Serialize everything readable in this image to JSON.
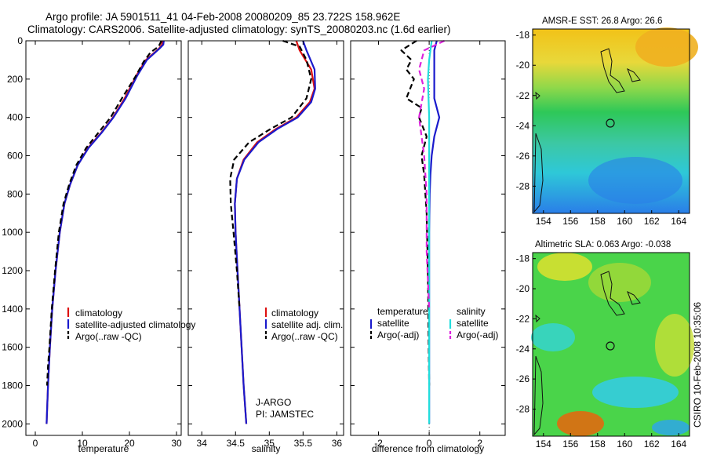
{
  "header": {
    "title_line1": "Argo profile: JA 5901511_41 04-Feb-2008 20080209_85 23.722S 158.962E",
    "title_line2": "Climatology: CARS2006. Satellite-adjusted climatology: synTS_20080203.nc (1.6d earlier)"
  },
  "side_text": "CSIRO 10-Feb-2008 10:35:06",
  "colors": {
    "climatology": "#dd1111",
    "satellite": "#1a1acc",
    "argo": "#000000",
    "satellite_salinity": "#22dddd",
    "argo_salinity": "#dd22dd"
  },
  "chart_data": [
    {
      "type": "line",
      "panel": "temperature",
      "xlabel": "temperature",
      "ylabel": "",
      "xlim": [
        -2,
        31
      ],
      "ylim": [
        2060,
        0
      ],
      "y_inverted": true,
      "x_ticks": [
        0,
        10,
        20,
        30
      ],
      "y_ticks": [
        0,
        200,
        400,
        600,
        800,
        1000,
        1200,
        1400,
        1600,
        1800,
        2000
      ],
      "legend": [
        "climatology",
        "satellite-adjusted climatology",
        "Argo(..raw -QC)"
      ],
      "series": [
        {
          "name": "climatology",
          "color": "red",
          "style": "solid",
          "x": [
            27.0,
            26.9,
            26.3,
            23.5,
            21.5,
            19.0,
            16.5,
            14.0,
            11.2,
            9.0,
            7.4,
            6.2,
            5.2,
            4.3,
            3.6,
            3.1,
            2.7,
            2.4
          ],
          "y": [
            0,
            20,
            40,
            100,
            180,
            300,
            400,
            480,
            560,
            650,
            750,
            850,
            1000,
            1200,
            1400,
            1600,
            1800,
            2000
          ]
        },
        {
          "name": "satellite-adjusted climatology",
          "color": "blue",
          "style": "solid",
          "x": [
            27.3,
            27.2,
            26.4,
            23.7,
            21.7,
            19.2,
            16.6,
            14.1,
            11.3,
            9.0,
            7.4,
            6.2,
            5.2,
            4.3,
            3.6,
            3.1,
            2.7,
            2.4
          ],
          "y": [
            0,
            20,
            40,
            100,
            180,
            300,
            400,
            480,
            560,
            650,
            750,
            850,
            1000,
            1200,
            1400,
            1600,
            1800,
            2000
          ]
        },
        {
          "name": "Argo(..raw -QC)",
          "color": "black",
          "style": "dashed",
          "x": [
            26.8,
            26.2,
            24.5,
            23.0,
            21.2,
            18.4,
            16.0,
            13.4,
            10.8,
            8.7,
            7.2,
            6.0,
            5.0,
            4.2,
            3.5,
            3.0,
            2.7,
            2.5
          ],
          "y": [
            0,
            30,
            60,
            110,
            190,
            300,
            400,
            480,
            560,
            650,
            750,
            850,
            1000,
            1200,
            1400,
            1600,
            1700,
            1800
          ]
        }
      ]
    },
    {
      "type": "line",
      "panel": "salinity",
      "xlabel": "salinity",
      "ylabel": "",
      "xlim": [
        33.8,
        36.1
      ],
      "ylim": [
        2060,
        0
      ],
      "y_inverted": true,
      "x_ticks": [
        34,
        34.5,
        35,
        35.5,
        36
      ],
      "legend": [
        "climatology",
        "satellite adj. clim.",
        "Argo(..raw -QC)"
      ],
      "annotation": [
        "J-ARGO",
        "PI: JAMSTEC"
      ],
      "series": [
        {
          "name": "climatology",
          "color": "red",
          "style": "solid",
          "x": [
            35.4,
            35.45,
            35.62,
            35.67,
            35.6,
            35.4,
            35.1,
            34.82,
            34.62,
            34.52,
            34.49,
            34.5,
            34.53,
            34.56,
            34.59,
            34.62,
            34.64,
            34.66
          ],
          "y": [
            0,
            50,
            150,
            250,
            320,
            400,
            460,
            530,
            620,
            720,
            850,
            1000,
            1200,
            1400,
            1600,
            1800,
            1900,
            2000
          ]
        },
        {
          "name": "satellite adj. clim.",
          "color": "blue",
          "style": "solid",
          "x": [
            35.5,
            35.55,
            35.67,
            35.68,
            35.62,
            35.42,
            35.12,
            34.84,
            34.63,
            34.52,
            34.49,
            34.5,
            34.53,
            34.56,
            34.59,
            34.62,
            34.64,
            34.66
          ],
          "y": [
            0,
            50,
            150,
            250,
            320,
            400,
            460,
            530,
            620,
            720,
            850,
            1000,
            1200,
            1400,
            1600,
            1800,
            1900,
            2000
          ]
        },
        {
          "name": "Argo(..raw -QC)",
          "color": "black",
          "style": "dashed",
          "x": [
            35.2,
            35.45,
            35.55,
            35.62,
            35.55,
            35.33,
            35.02,
            34.7,
            34.48,
            34.42,
            34.43,
            34.47,
            34.52,
            34.56
          ],
          "y": [
            0,
            30,
            100,
            200,
            300,
            400,
            460,
            530,
            620,
            720,
            850,
            1000,
            1200,
            1400
          ]
        }
      ]
    },
    {
      "type": "line",
      "panel": "difference",
      "xlabel": "difference from climatology",
      "ylabel": "",
      "xlim": [
        -3.1,
        3.0
      ],
      "ylim": [
        2060,
        0
      ],
      "y_inverted": true,
      "x_ticks": [
        -2,
        0,
        2
      ],
      "legend_headers": [
        "temperature",
        "salinity"
      ],
      "legend": [
        "satellite",
        "Argo(-adj)",
        "satellite",
        "Argo(-adj)"
      ],
      "series": [
        {
          "name": "satellite",
          "group": "temperature",
          "color": "blue",
          "style": "solid",
          "x": [
            0.3,
            0.2,
            0.2,
            0.2,
            0.2,
            0.3,
            0.4,
            0.2,
            0.1,
            0.05,
            0.02,
            0.0,
            0.0,
            0.0
          ],
          "y": [
            0,
            50,
            100,
            200,
            300,
            350,
            400,
            500,
            600,
            700,
            800,
            1000,
            1500,
            2000
          ]
        },
        {
          "name": "Argo(-adj)",
          "group": "temperature",
          "color": "black",
          "style": "dashed",
          "x": [
            -0.5,
            -1.1,
            -0.7,
            -0.9,
            -0.6,
            -0.9,
            -0.3,
            -0.4,
            -0.1,
            -0.3,
            -0.2,
            -0.1,
            -0.05,
            0.0
          ],
          "y": [
            0,
            50,
            100,
            150,
            200,
            300,
            350,
            400,
            500,
            600,
            700,
            900,
            1200,
            1800
          ]
        },
        {
          "name": "satellite",
          "group": "salinity",
          "color": "cyan",
          "style": "solid",
          "x": [
            0.1,
            0.05,
            0.0,
            -0.05,
            0.0,
            0.0,
            0.0,
            0.0,
            0.0
          ],
          "y": [
            0,
            50,
            100,
            200,
            400,
            700,
            1000,
            1500,
            2000
          ]
        },
        {
          "name": "Argo(-adj)",
          "group": "salinity",
          "color": "magenta",
          "style": "dashed",
          "x": [
            0.6,
            -0.2,
            -0.4,
            -0.2,
            -0.4,
            -0.2,
            -0.1,
            -0.1,
            0.0
          ],
          "y": [
            0,
            50,
            150,
            250,
            400,
            600,
            800,
            1100,
            1400
          ]
        }
      ]
    },
    {
      "type": "heatmap",
      "panel": "sst_map",
      "title": "AMSR-E SST: 26.8 Argo: 26.6",
      "x_ticks": [
        154,
        156,
        158,
        160,
        162,
        164
      ],
      "y_ticks": [
        -18,
        -20,
        -22,
        -24,
        -26,
        -28
      ],
      "xlim": [
        153.2,
        164.8
      ],
      "ylim": [
        -29.8,
        -17.6
      ],
      "marker": {
        "lon": 158.962,
        "lat": -23.722
      }
    },
    {
      "type": "heatmap",
      "panel": "sla_map",
      "title": "Altimetric SLA: 0.063 Argo: -0.038",
      "x_ticks": [
        154,
        156,
        158,
        160,
        162,
        164
      ],
      "y_ticks": [
        -18,
        -20,
        -22,
        -24,
        -26,
        -28
      ],
      "xlim": [
        153.2,
        164.8
      ],
      "ylim": [
        -29.8,
        -17.6
      ],
      "marker": {
        "lon": 158.962,
        "lat": -23.722
      }
    }
  ]
}
